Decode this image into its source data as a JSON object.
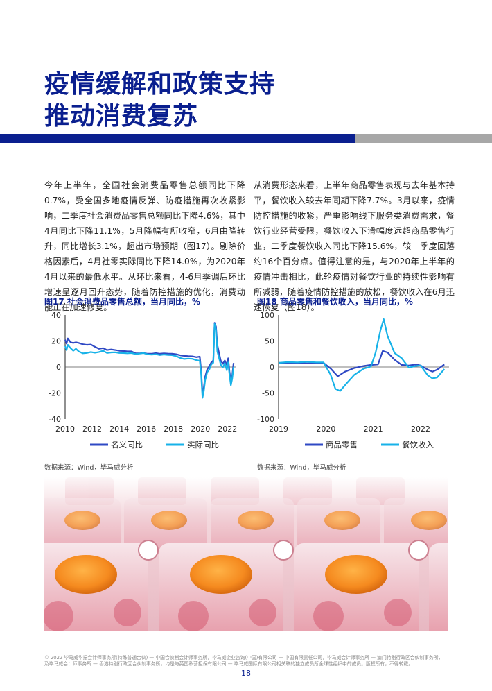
{
  "title": {
    "line1": "疫情缓解和政策支持",
    "line2": "推动消费复苏"
  },
  "paragraphs": {
    "left": "今年上半年，全国社会消费品零售总额同比下降0.7%，受全国多地疫情反弹、防疫措施再次收紧影响，二季度社会消费品零售总额同比下降4.6%，其中4月同比下降11.1%，5月降幅有所收窄，6月由降转升，同比增长3.1%，超出市场预期（图17）。剔除价格因素后，4月社零实际同比下降14.0%，为2020年4月以来的最低水平。从环比来看，4-6月季调后环比增速呈逐月回升态势，随着防控措施的优化，消费动能正在加速修复。",
    "right": "从消费形态来看，上半年商品零售表现与去年基本持平，餐饮收入较去年同期下降7.7%。3月以来，疫情防控措施的收紧，严重影响线下服务类消费需求，餐饮行业经营受限，餐饮收入下滑幅度远超商品零售行业，二季度餐饮收入同比下降15.6%，较一季度回落约16个百分点。值得注意的是，与2020年上半年的疫情冲击相比，此轮疫情对餐饮行业的持续性影响有所减弱，随着疫情防控措施的放松，餐饮收入在6月迅速恢复（图18）。"
  },
  "colors": {
    "navy": "#0a1f8f",
    "series_dark": "#2f49c4",
    "series_light": "#17b2e8",
    "gray_bar": "#a7a7a7"
  },
  "figures": {
    "fig17": {
      "title": "图17 社会消费品零售总额，当月同比，%",
      "source": "数据来源：Wind，毕马威分析"
    },
    "fig18": {
      "title": "图18 商品零售和餐饮收入，当月同比，%",
      "source": "数据来源：Wind，毕马威分析"
    }
  },
  "chart_data": [
    {
      "type": "line",
      "title": "图17 社会消费品零售总额，当月同比，%",
      "xlabel": "",
      "ylabel": "",
      "xlim": [
        2010,
        2022.6
      ],
      "ylim": [
        -40,
        40
      ],
      "yticks": [
        40,
        20,
        0,
        -20,
        -40
      ],
      "xticks": [
        "2010",
        "2012",
        "2014",
        "2016",
        "2018",
        "2020",
        "2022"
      ],
      "legend_position": "bottom",
      "series": [
        {
          "name": "名义同比",
          "color": "#2f49c4",
          "x": [
            2010.0,
            2010.1,
            2010.2,
            2010.4,
            2010.6,
            2010.8,
            2011.0,
            2011.3,
            2011.6,
            2011.9,
            2012.2,
            2012.5,
            2012.8,
            2013.1,
            2013.4,
            2013.7,
            2014.0,
            2014.3,
            2014.6,
            2014.9,
            2015.2,
            2015.5,
            2015.8,
            2016.1,
            2016.4,
            2016.7,
            2017.0,
            2017.3,
            2017.6,
            2017.9,
            2018.2,
            2018.5,
            2018.8,
            2019.1,
            2019.4,
            2019.7,
            2019.95,
            2020.05,
            2020.15,
            2020.25,
            2020.35,
            2020.5,
            2020.65,
            2020.8,
            2020.95,
            2021.05,
            2021.15,
            2021.25,
            2021.35,
            2021.5,
            2021.65,
            2021.8,
            2021.95,
            2022.05,
            2022.15,
            2022.25,
            2022.35,
            2022.45
          ],
          "values": [
            21,
            18,
            22,
            19,
            18.5,
            19,
            18.5,
            17.5,
            17,
            17.3,
            15.5,
            14,
            14.5,
            13,
            13.5,
            13,
            12.5,
            12.3,
            12,
            12,
            10.5,
            10.5,
            10.8,
            10.2,
            10.2,
            10.7,
            10.2,
            10.5,
            10.3,
            10.2,
            9.8,
            9,
            8.6,
            8.3,
            8.2,
            7.6,
            8,
            -2,
            -20.5,
            -16,
            -7.5,
            -1.8,
            0.5,
            3.5,
            5,
            34,
            31,
            17,
            12,
            5,
            2.5,
            5,
            1.7,
            6.7,
            -3.5,
            -11,
            -6.7,
            3.1
          ]
        },
        {
          "name": "实际同比",
          "color": "#17b2e8",
          "x": [
            2010.0,
            2010.1,
            2010.2,
            2010.4,
            2010.6,
            2010.8,
            2011.0,
            2011.3,
            2011.6,
            2011.9,
            2012.2,
            2012.5,
            2012.8,
            2013.1,
            2013.4,
            2013.7,
            2014.0,
            2014.3,
            2014.6,
            2014.9,
            2015.2,
            2015.5,
            2015.8,
            2016.1,
            2016.4,
            2016.7,
            2017.0,
            2017.3,
            2017.6,
            2017.9,
            2018.2,
            2018.5,
            2018.8,
            2019.1,
            2019.4,
            2019.7,
            2019.95,
            2020.05,
            2020.15,
            2020.25,
            2020.35,
            2020.5,
            2020.65,
            2020.8,
            2020.95,
            2021.05,
            2021.15,
            2021.25,
            2021.35,
            2021.5,
            2021.65,
            2021.8,
            2021.95,
            2022.05,
            2022.15,
            2022.25,
            2022.35,
            2022.45
          ],
          "values": [
            16,
            13,
            17,
            14.5,
            12.5,
            14,
            12,
            10.5,
            10.8,
            11.5,
            11,
            11.5,
            12.5,
            10.8,
            11.2,
            11.3,
            10.8,
            10.7,
            10.5,
            10.7,
            10,
            10.3,
            10.7,
            9.7,
            9.5,
            9.8,
            9.2,
            9.6,
            9.3,
            9.1,
            8.4,
            7,
            6.2,
            6.5,
            6.3,
            5.3,
            4.8,
            -5,
            -23.7,
            -18.6,
            -10,
            -4,
            -2,
            2,
            3.3,
            33,
            29,
            12,
            8,
            2,
            -0.5,
            3,
            -2.5,
            3.5,
            -6,
            -14,
            -9,
            0.1
          ]
        }
      ]
    },
    {
      "type": "line",
      "title": "图18 商品零售和餐饮收入，当月同比，%",
      "xlabel": "",
      "ylabel": "",
      "xlim": [
        2019,
        2022.6
      ],
      "ylim": [
        -100,
        100
      ],
      "yticks": [
        100,
        50,
        0,
        -50,
        -100
      ],
      "xticks": [
        "2019",
        "2020",
        "2021",
        "2022"
      ],
      "legend_position": "bottom",
      "series": [
        {
          "name": "商品零售",
          "color": "#2f49c4",
          "x": [
            2019.0,
            2019.2,
            2019.4,
            2019.6,
            2019.8,
            2019.95,
            2020.1,
            2020.25,
            2020.4,
            2020.6,
            2020.8,
            2020.95,
            2021.1,
            2021.2,
            2021.3,
            2021.45,
            2021.6,
            2021.75,
            2021.9,
            2022.0,
            2022.15,
            2022.25,
            2022.35,
            2022.5
          ],
          "values": [
            8,
            7.5,
            8,
            7,
            7.5,
            8,
            -3,
            -18,
            -9,
            -2,
            2,
            4,
            5,
            31,
            28,
            14,
            4,
            3,
            5,
            3,
            -5,
            -9,
            -5,
            5
          ]
        },
        {
          "name": "餐饮收入",
          "color": "#17b2e8",
          "x": [
            2019.0,
            2019.2,
            2019.4,
            2019.6,
            2019.8,
            2019.95,
            2020.1,
            2020.2,
            2020.3,
            2020.45,
            2020.6,
            2020.8,
            2020.95,
            2021.05,
            2021.15,
            2021.22,
            2021.3,
            2021.45,
            2021.6,
            2021.75,
            2021.9,
            2022.0,
            2022.15,
            2022.25,
            2022.35,
            2022.5
          ],
          "values": [
            8,
            9.5,
            9,
            10,
            9,
            9,
            -15,
            -42,
            -46,
            -30,
            -15,
            -3,
            1,
            28,
            70,
            92,
            60,
            27,
            17,
            -1,
            2,
            3,
            -16,
            -22,
            -20,
            -4
          ]
        }
      ]
    }
  ],
  "footer": {
    "line1": "© 2022 毕马威华振会计师事务所(特殊普通合伙) — 中国合伙制会计师事务所，毕马威企业咨询(中国)有限公司 — 中国有限责任公司，毕马威会计师事务所 — 澳门特别行政区合伙制事务所，",
    "line2": "及毕马威会计师事务所 — 香港特别行政区合伙制事务所，均是与英国私营担保有限公司 — 毕马威国际有限公司相关联的独立成员所全球性组织中的成员。版权所有，不得转载。",
    "page": "18"
  }
}
